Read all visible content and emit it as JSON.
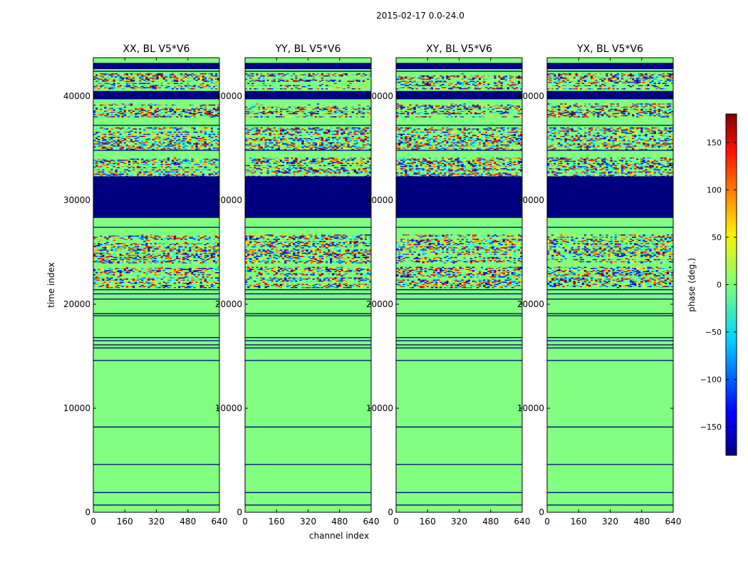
{
  "suptitle": "2015-02-17 0.0-24.0",
  "chart_data": {
    "type": "heatmap",
    "panels": [
      {
        "title": "XX, BL V5*V6"
      },
      {
        "title": "YY, BL V5*V6"
      },
      {
        "title": "XY, BL V5*V6"
      },
      {
        "title": "YX, BL V5*V6"
      }
    ],
    "xlabel": "channel index",
    "ylabel": "time index",
    "xlim": [
      0,
      640
    ],
    "ylim": [
      0,
      43700
    ],
    "xticks": [
      0,
      160,
      320,
      480,
      640
    ],
    "yticks": [
      0,
      10000,
      20000,
      30000,
      40000
    ],
    "colorbar": {
      "label": "phase (deg.)",
      "range": [
        -180,
        180
      ],
      "ticks": [
        -150,
        -100,
        -50,
        0,
        50,
        100,
        150
      ],
      "tick_labels": [
        "−150",
        "−100",
        "−50",
        "0",
        "50",
        "100",
        "150"
      ]
    },
    "colormap": "jet",
    "background_value_deg": 0,
    "flagged_bands": [
      {
        "y": [
          28300,
          32300
        ],
        "value_deg": -180
      },
      {
        "y": [
          39700,
          40500
        ],
        "value_deg": -180
      },
      {
        "y": [
          42600,
          43200
        ],
        "value_deg": -180
      }
    ],
    "thin_flag_rows": [
      700,
      1900,
      4600,
      8200,
      14600,
      15800,
      16100,
      16500,
      16800,
      18900,
      19100,
      20500,
      21000,
      21400,
      27400,
      34800,
      37200,
      42400
    ],
    "noisy_rows": [
      {
        "y": [
          21600,
          23600
        ]
      },
      {
        "y": [
          24000,
          26700
        ]
      },
      {
        "y": [
          32300,
          34100
        ]
      },
      {
        "y": [
          34900,
          37000
        ]
      },
      {
        "y": [
          38000,
          39300
        ]
      },
      {
        "y": [
          40700,
          42200
        ]
      }
    ]
  }
}
